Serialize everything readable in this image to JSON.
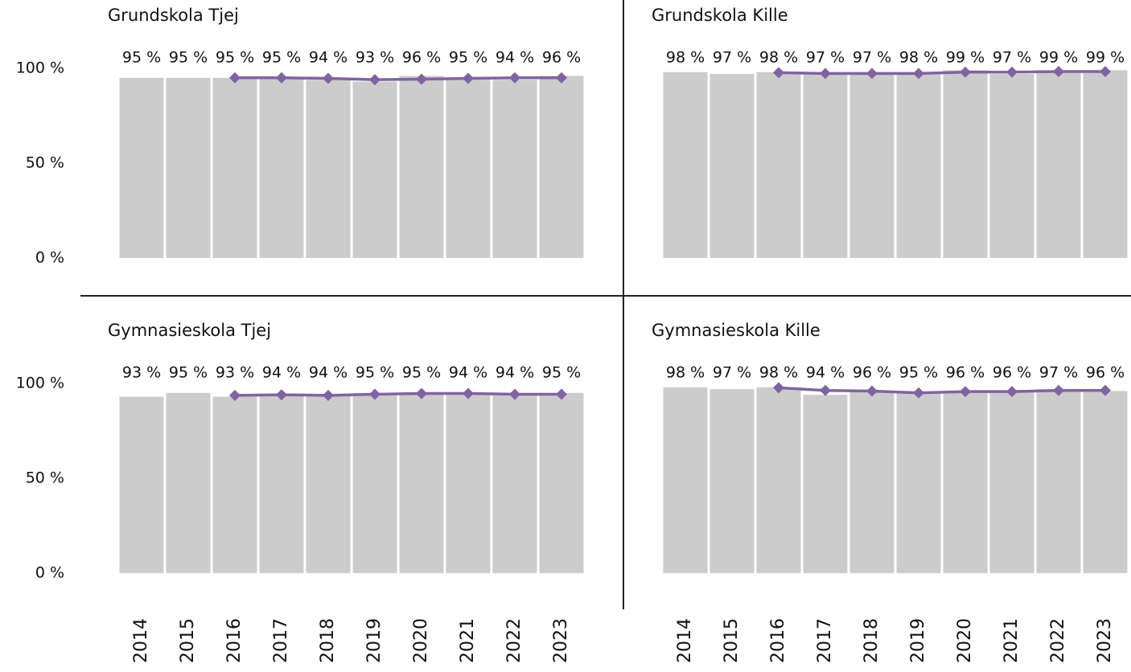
{
  "chart_data": [
    {
      "type": "bar",
      "title": "Grundskola Tjej",
      "ylim": [
        0,
        100
      ],
      "yticks": [
        {
          "value": 0,
          "label": "0 %"
        },
        {
          "value": 50,
          "label": "50 %"
        },
        {
          "value": 100,
          "label": "100 %"
        }
      ],
      "series": [
        {
          "color": "#cccccc",
          "values": [
            95,
            95,
            95,
            95,
            94,
            93,
            96,
            95,
            94,
            96
          ],
          "value_labels": [
            "95 %",
            "95 %",
            "95 %",
            "95 %",
            "94 %",
            "93 %",
            "96 %",
            "95 %",
            "94 %",
            "96 %"
          ]
        },
        {
          "type": "line",
          "color": "#8064a2",
          "values": [
            null,
            null,
            95,
            95,
            94.7,
            94,
            94.3,
            94.7,
            95,
            95
          ]
        }
      ]
    },
    {
      "type": "bar",
      "title": "Grundskola Kille",
      "ylim": [
        0,
        100
      ],
      "series": [
        {
          "color": "#cccccc",
          "values": [
            98,
            97,
            98,
            97,
            97,
            98,
            99,
            97,
            99,
            99
          ],
          "value_labels": [
            "98 %",
            "97 %",
            "98 %",
            "97 %",
            "97 %",
            "98 %",
            "99 %",
            "97 %",
            "99 %",
            "99 %"
          ]
        },
        {
          "type": "line",
          "color": "#8064a2",
          "values": [
            null,
            null,
            97.7,
            97.3,
            97.3,
            97.3,
            98,
            98,
            98.3,
            98.3
          ]
        }
      ]
    },
    {
      "type": "bar",
      "title": "Gymnasieskola Tjej",
      "ylim": [
        0,
        100
      ],
      "yticks": [
        {
          "value": 0,
          "label": "0 %"
        },
        {
          "value": 50,
          "label": "50 %"
        },
        {
          "value": 100,
          "label": "100 %"
        }
      ],
      "categories": [
        "2014",
        "2015",
        "2016",
        "2017",
        "2018",
        "2019",
        "2020",
        "2021",
        "2022",
        "2023"
      ],
      "series": [
        {
          "color": "#cccccc",
          "values": [
            93,
            95,
            93,
            94,
            94,
            95,
            95,
            94,
            94,
            95
          ],
          "value_labels": [
            "93 %",
            "95 %",
            "93 %",
            "94 %",
            "94 %",
            "95 %",
            "95 %",
            "94 %",
            "94 %",
            "95 %"
          ]
        },
        {
          "type": "line",
          "color": "#8064a2",
          "values": [
            null,
            null,
            93.7,
            94,
            93.7,
            94.3,
            94.7,
            94.7,
            94.3,
            94.3
          ]
        }
      ]
    },
    {
      "type": "bar",
      "title": "Gymnasieskola Kille",
      "ylim": [
        0,
        100
      ],
      "categories": [
        "2014",
        "2015",
        "2016",
        "2017",
        "2018",
        "2019",
        "2020",
        "2021",
        "2022",
        "2023"
      ],
      "series": [
        {
          "color": "#cccccc",
          "values": [
            98,
            97,
            98,
            94,
            96,
            95,
            96,
            96,
            97,
            96
          ],
          "value_labels": [
            "98 %",
            "97 %",
            "98 %",
            "94 %",
            "96 %",
            "95 %",
            "96 %",
            "96 %",
            "97 %",
            "96 %"
          ]
        },
        {
          "type": "line",
          "color": "#8064a2",
          "values": [
            null,
            null,
            97.7,
            96.3,
            96,
            95,
            95.7,
            95.7,
            96.3,
            96.3
          ]
        }
      ]
    }
  ]
}
